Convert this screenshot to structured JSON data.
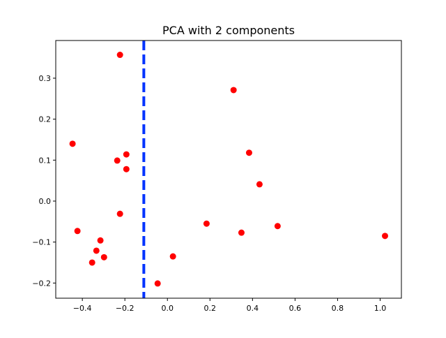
{
  "chart_data": {
    "type": "scatter",
    "title": "PCA with 2 components",
    "xlabel": "",
    "ylabel": "",
    "xlim": [
      -0.525,
      1.1
    ],
    "ylim": [
      -0.237,
      0.392
    ],
    "xticks": [
      -0.4,
      -0.2,
      0.0,
      0.2,
      0.4,
      0.6,
      0.8,
      1.0
    ],
    "xtick_labels": [
      "−0.4",
      "−0.2",
      "0.0",
      "0.2",
      "0.4",
      "0.6",
      "0.8",
      "1.0"
    ],
    "yticks": [
      -0.2,
      -0.1,
      0.0,
      0.1,
      0.2,
      0.3
    ],
    "ytick_labels": [
      "−0.2",
      "−0.1",
      "0.0",
      "0.1",
      "0.2",
      "0.3"
    ],
    "grid": false,
    "point_color": "#ff0000",
    "line_color": "#0033ff",
    "vline_x": -0.111,
    "points": [
      [
        -0.223,
        0.357
      ],
      [
        0.311,
        0.271
      ],
      [
        -0.446,
        0.14
      ],
      [
        -0.193,
        0.114
      ],
      [
        -0.236,
        0.099
      ],
      [
        -0.193,
        0.078
      ],
      [
        0.384,
        0.118
      ],
      [
        0.433,
        0.041
      ],
      [
        -0.223,
        -0.031
      ],
      [
        0.184,
        -0.055
      ],
      [
        0.348,
        -0.077
      ],
      [
        0.518,
        -0.061
      ],
      [
        1.023,
        -0.085
      ],
      [
        -0.423,
        -0.073
      ],
      [
        -0.315,
        -0.096
      ],
      [
        -0.334,
        -0.121
      ],
      [
        -0.298,
        -0.137
      ],
      [
        -0.354,
        -0.15
      ],
      [
        0.026,
        -0.135
      ],
      [
        -0.046,
        -0.201
      ]
    ]
  }
}
